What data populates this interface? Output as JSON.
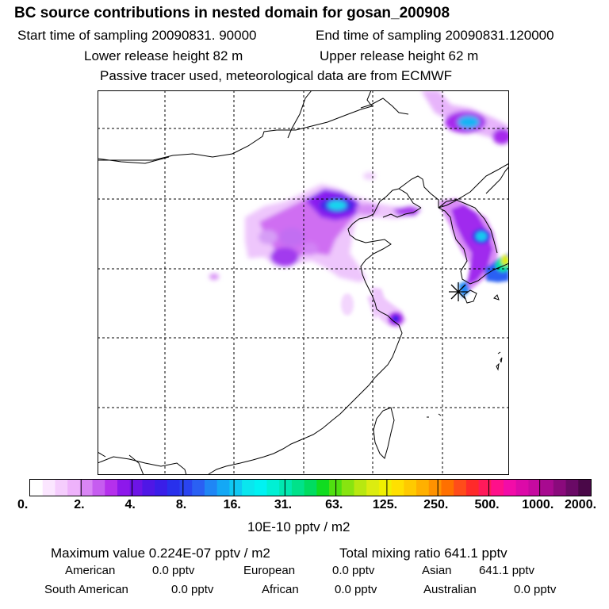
{
  "header": {
    "title": "BC  source contributions in nested domain for gosan_200908",
    "start_time": "Start time of sampling 20090831. 90000",
    "end_time": "End time of sampling 20090831.120000",
    "lower_release": "Lower release height   82 m",
    "upper_release": "Upper release height   62 m",
    "tracer_note": "Passive tracer used, meteorological data are from ECMWF"
  },
  "legend": {
    "units": "10E-10 pptv / m2",
    "ticks": [
      "0.",
      "2.",
      "4.",
      "8.",
      "16.",
      "31.",
      "63.",
      "125.",
      "250.",
      "500.",
      "1000.",
      "2000."
    ],
    "colors": [
      "#ffffff",
      "#fbe6ff",
      "#f5cdfd",
      "#eeb2fb",
      "#d985f5",
      "#c65cf0",
      "#b530ec",
      "#8d18eb",
      "#6d14e6",
      "#4f17e6",
      "#3a1ee8",
      "#2830ec",
      "#2a44f0",
      "#2a60f3",
      "#1f86f5",
      "#14a8f5",
      "#0fc8f2",
      "#0ae6ee",
      "#00f2f2",
      "#00f0d4",
      "#00e8b0",
      "#00e28a",
      "#00dc60",
      "#10dc20",
      "#50e010",
      "#88e410",
      "#b8e810",
      "#dcec10",
      "#f0f000",
      "#ffe000",
      "#ffca00",
      "#ffb000",
      "#ff9200",
      "#ff7000",
      "#ff4c1a",
      "#ff2a2a",
      "#ff1a5a",
      "#ff108a",
      "#f20ca8",
      "#dc0aa8",
      "#c60aa0",
      "#a80a90",
      "#8a0a7c",
      "#6a0a66",
      "#4a0848"
    ]
  },
  "stats": {
    "max_value": "Maximum value  0.224E-07 pptv / m2",
    "total_mixing": "Total mixing ratio      641.1 pptv",
    "sources": [
      {
        "label": "American",
        "value": "0.0 pptv"
      },
      {
        "label": "European",
        "value": "0.0 pptv"
      },
      {
        "label": "Asian",
        "value": "641.1 pptv"
      },
      {
        "label": "South American",
        "value": "0.0 pptv"
      },
      {
        "label": "African",
        "value": "0.0 pptv"
      },
      {
        "label": "Australian",
        "value": "0.0 pptv"
      }
    ]
  },
  "map": {
    "receptor_marker": "star-icon",
    "colors": {
      "coast": "#000000",
      "grid": "#000000"
    }
  }
}
